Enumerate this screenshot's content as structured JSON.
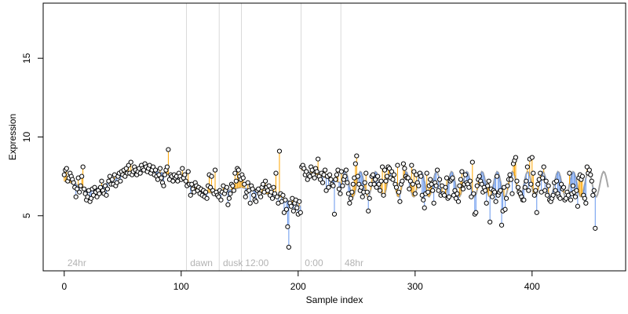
{
  "chart_data": {
    "type": "scatter",
    "title": "",
    "xlabel": "Sample index",
    "ylabel": "Expression",
    "xlim": [
      -18,
      480
    ],
    "ylim": [
      1.5,
      18.5
    ],
    "x_ticks": [
      0,
      100,
      200,
      300,
      400
    ],
    "y_ticks": [
      5,
      10,
      15
    ],
    "grid": false,
    "legend": "none",
    "colors": {
      "point_fill": "#ffffff",
      "point_stroke": "#000000",
      "above_line": "#ffa500",
      "below_line": "#6495ed",
      "fit_line": "#a6a6a6",
      "phase_divider": "#d9d9d9",
      "phase_label": "#b3b3b3"
    },
    "phases": [
      {
        "label": "24hr",
        "start": 0
      },
      {
        "label": "dawn",
        "start": 105
      },
      {
        "label": "dusk",
        "start": 133
      },
      {
        "label": "12:00",
        "start": 152
      },
      {
        "label": "0:00",
        "start": 203
      },
      {
        "label": "48hr",
        "start": 237
      }
    ],
    "fit_segments": [
      {
        "x0": 0,
        "x1": 104,
        "points": [
          [
            0,
            7.2
          ],
          [
            10,
            7.0
          ],
          [
            20,
            6.5
          ],
          [
            30,
            6.8
          ],
          [
            40,
            7.2
          ],
          [
            50,
            7.6
          ],
          [
            60,
            7.9
          ],
          [
            70,
            8.0
          ],
          [
            80,
            7.8
          ],
          [
            90,
            7.6
          ],
          [
            104,
            7.3
          ]
        ]
      },
      {
        "x0": 105,
        "x1": 132,
        "points": [
          [
            105,
            7.0
          ],
          [
            112,
            6.7
          ],
          [
            120,
            6.5
          ],
          [
            132,
            6.4
          ]
        ]
      },
      {
        "x0": 133,
        "x1": 151,
        "points": [
          [
            133,
            6.5
          ],
          [
            140,
            6.6
          ],
          [
            151,
            6.8
          ]
        ]
      },
      {
        "x0": 152,
        "x1": 202,
        "points": [
          [
            152,
            6.8
          ],
          [
            162,
            6.6
          ],
          [
            172,
            6.4
          ],
          [
            182,
            6.3
          ],
          [
            190,
            6.0
          ],
          [
            196,
            5.8
          ],
          [
            202,
            5.6
          ]
        ]
      },
      {
        "x0": 203,
        "x1": 236,
        "points": [
          [
            203,
            7.9
          ],
          [
            212,
            7.7
          ],
          [
            220,
            7.5
          ],
          [
            228,
            7.3
          ],
          [
            236,
            7.1
          ]
        ]
      },
      {
        "x0": 237,
        "x1": 465,
        "osc": {
          "mean": 7.0,
          "amp": 0.8,
          "period": 13
        }
      }
    ],
    "points": {
      "x_start": 0,
      "x_step": 1,
      "y": [
        7.6,
        7.9,
        8.0,
        7.2,
        7.4,
        7.7,
        7.5,
        7.3,
        7.1,
        6.8,
        6.2,
        6.7,
        7.4,
        6.5,
        6.9,
        7.5,
        8.1,
        6.7,
        6.4,
        6.0,
        6.2,
        6.6,
        5.9,
        6.1,
        6.7,
        6.3,
        6.8,
        6.5,
        6.2,
        6.6,
        6.4,
        6.8,
        7.2,
        6.6,
        6.4,
        6.9,
        6.3,
        6.7,
        7.2,
        7.5,
        7.0,
        7.3,
        7.0,
        7.6,
        6.9,
        7.1,
        7.5,
        7.7,
        7.2,
        7.8,
        7.6,
        7.9,
        7.5,
        8.0,
        7.7,
        8.2,
        7.7,
        8.4,
        7.6,
        7.8,
        8.1,
        7.9,
        7.6,
        7.8,
        8.0,
        7.7,
        8.2,
        8.0,
        7.9,
        8.3,
        8.1,
        7.8,
        8.0,
        8.2,
        7.7,
        7.9,
        8.1,
        7.6,
        7.9,
        7.5,
        7.3,
        7.6,
        8.0,
        7.4,
        7.1,
        6.9,
        7.6,
        7.9,
        8.1,
        9.2,
        7.3,
        7.6,
        7.5,
        7.2,
        7.6,
        7.4,
        7.5,
        7.2,
        7.7,
        7.5,
        7.3,
        8.0,
        7.4,
        7.6,
        7.2,
        6.9,
        7.8,
        7.0,
        6.3,
        7.0,
        6.7,
        6.5,
        7.1,
        6.9,
        6.6,
        6.8,
        6.4,
        6.7,
        6.3,
        6.6,
        6.2,
        6.5,
        6.1,
        6.9,
        7.6,
        6.8,
        7.5,
        6.6,
        6.4,
        7.9,
        6.5,
        6.3,
        6.2,
        6.6,
        6.0,
        6.5,
        6.9,
        6.4,
        6.6,
        6.8,
        5.7,
        6.1,
        6.4,
        7.0,
        6.9,
        6.6,
        7.7,
        7.2,
        8.0,
        7.9,
        7.5,
        7.3,
        7.6,
        7.4,
        7.0,
        6.2,
        6.5,
        7.1,
        6.6,
        5.8,
        6.9,
        6.7,
        6.3,
        6.0,
        5.9,
        6.6,
        6.7,
        6.4,
        6.2,
        6.8,
        7.0,
        6.5,
        7.2,
        6.8,
        6.6,
        6.9,
        6.3,
        6.5,
        6.1,
        6.8,
        6.4,
        7.7,
        6.2,
        5.8,
        9.1,
        6.4,
        5.9,
        6.3,
        5.2,
        6.0,
        5.4,
        4.3,
        3.0,
        5.8,
        5.6,
        6.1,
        5.3,
        5.8,
        6.0,
        5.5,
        5.1,
        5.9,
        5.2,
        8.1,
        8.2,
        8.0,
        7.6,
        7.8,
        7.3,
        7.6,
        7.5,
        8.1,
        7.9,
        7.6,
        7.4,
        8.0,
        7.8,
        8.6,
        7.5,
        7.3,
        7.7,
        7.1,
        7.6,
        7.9,
        6.6,
        7.5,
        6.8,
        7.6,
        7.3,
        7.0,
        6.9,
        5.1,
        7.3,
        7.6,
        7.9,
        6.7,
        6.4,
        7.8,
        6.9,
        7.3,
        7.5,
        7.9,
        7.1,
        6.4,
        5.8,
        6.1,
        6.5,
        7.0,
        7.4,
        8.3,
        8.8,
        7.5,
        7.0,
        6.6,
        6.8,
        6.2,
        6.5,
        7.1,
        7.7,
        6.5,
        5.3,
        6.1,
        7.0,
        7.5,
        7.6,
        7.0,
        7.3,
        6.8,
        7.5,
        7.0,
        6.6,
        7.2,
        8.1,
        6.3,
        7.9,
        7.2,
        7.5,
        8.1,
        8.0,
        7.4,
        7.8,
        7.3,
        7.6,
        7.0,
        6.8,
        8.2,
        6.5,
        5.9,
        7.0,
        7.2,
        8.3,
        8.0,
        7.5,
        7.4,
        7.4,
        6.7,
        7.2,
        8.2,
        7.0,
        7.8,
        6.4,
        7.6,
        7.1,
        6.9,
        7.7,
        7.5,
        6.3,
        6.0,
        5.5,
        6.4,
        7.7,
        6.5,
        6.9,
        7.3,
        7.0,
        6.6,
        5.8,
        7.1,
        6.9,
        7.9,
        6.6,
        7.3,
        6.3,
        6.9,
        6.4,
        6.3,
        6.8,
        7.4,
        6.1,
        6.2,
        7.2,
        7.3,
        7.4,
        6.3,
        6.6,
        6.1,
        6.4,
        5.9,
        6.9,
        7.3,
        7.8,
        6.7,
        7.0,
        7.6,
        7.1,
        7.0,
        6.8,
        7.2,
        6.2,
        8.4,
        6.4,
        5.1,
        5.2,
        6.9,
        7.3,
        7.5,
        7.2,
        7.0,
        6.5,
        6.8,
        6.6,
        5.8,
        6.9,
        7.2,
        4.6,
        6.7,
        6.2,
        6.6,
        6.5,
        5.9,
        7.5,
        6.3,
        6.5,
        6.6,
        4.4,
        5.3,
        6.8,
        5.4,
        6.1,
        6.9,
        7.3,
        7.6,
        7.3,
        6.4,
        8.3,
        8.5,
        8.7,
        7.2,
        6.8,
        6.5,
        6.4,
        6.2,
        6.0,
        6.0,
        6.8,
        7.2,
        8.1,
        6.6,
        8.6,
        7.0,
        8.7,
        7.7,
        6.3,
        6.6,
        5.2,
        7.0,
        7.3,
        7.7,
        6.5,
        7.4,
        8.1,
        6.6,
        7.2,
        6.3,
        6.9,
        6.0,
        5.9,
        6.1,
        6.3,
        7.1,
        6.6,
        7.2,
        6.4,
        6.2,
        6.1,
        7.0,
        6.7,
        6.8,
        6.0,
        6.1,
        6.5,
        6.3,
        7.7,
        6.0,
        6.4,
        6.9,
        6.5,
        6.2,
        6.6,
        5.6,
        7.4,
        7.6,
        7.3,
        7.5,
        6.3,
        6.1,
        5.8,
        8.1,
        7.7,
        7.9,
        7.6,
        7.2,
        6.3,
        6.6,
        4.2
      ]
    }
  }
}
